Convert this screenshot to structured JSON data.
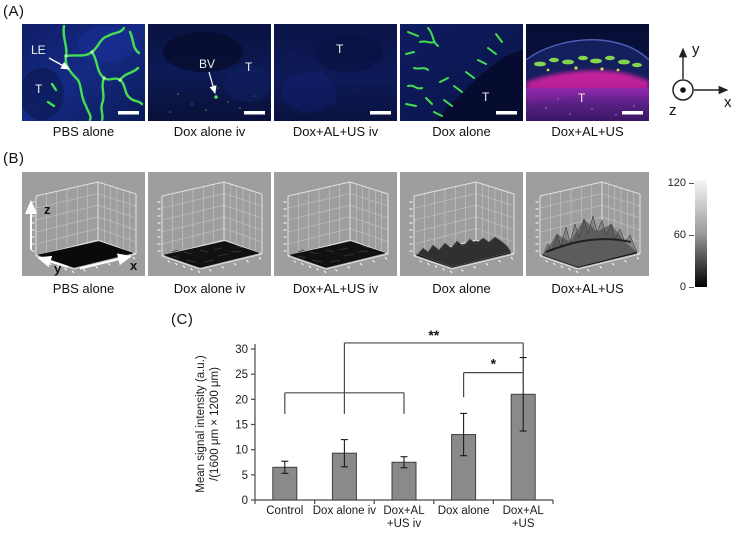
{
  "figure": {
    "panel_a_label": "(A)",
    "panel_b_label": "(B)",
    "panel_c_label": "(C)"
  },
  "panel_a": {
    "images": [
      {
        "caption": "PBS alone",
        "annotations": {
          "le": "LE",
          "t": "T"
        }
      },
      {
        "caption": "Dox alone iv",
        "annotations": {
          "bv": "BV",
          "t": "T"
        }
      },
      {
        "caption": "Dox+AL+US iv",
        "annotations": {
          "t": "T"
        }
      },
      {
        "caption": "Dox alone",
        "annotations": {
          "t": "T"
        }
      },
      {
        "caption": "Dox+AL+US",
        "annotations": {
          "t": "T"
        }
      }
    ],
    "axis_icon": {
      "x_label": "x",
      "y_label": "y",
      "z_label": "z"
    }
  },
  "panel_b": {
    "plots": [
      {
        "caption": "PBS alone",
        "surface": "flat"
      },
      {
        "caption": "Dox alone iv",
        "surface": "granular"
      },
      {
        "caption": "Dox+AL+US iv",
        "surface": "granular"
      },
      {
        "caption": "Dox alone",
        "surface": "bumpy"
      },
      {
        "caption": "Dox+AL+US",
        "surface": "peaks"
      }
    ],
    "axis_labels": {
      "x": "x",
      "y": "y",
      "z": "z"
    },
    "colorbar": {
      "tick_labels": [
        "120",
        "60",
        "0"
      ],
      "max": 120,
      "min": 0,
      "top_color": "#f7f7f7",
      "bottom_color": "#000000"
    }
  },
  "chart_data": {
    "type": "bar",
    "title": "",
    "ylabel_lines": [
      "Mean signal intensity (a.u.)",
      "/(1600 μm × 1200 μm)"
    ],
    "categories": [
      [
        "Control"
      ],
      [
        "Dox alone iv"
      ],
      [
        "Dox+AL",
        "+US iv"
      ],
      [
        "Dox alone"
      ],
      [
        "Dox+AL",
        "+US"
      ]
    ],
    "values": [
      6.5,
      9.3,
      7.5,
      13,
      21
    ],
    "errors": [
      1.2,
      2.7,
      1.1,
      4.2,
      7.3
    ],
    "ylim": [
      0,
      30
    ],
    "yticks": [
      0,
      5,
      10,
      15,
      20,
      25,
      30
    ],
    "grid": false,
    "legend": null,
    "bar_color": "#8a8a8a",
    "bar_edge_color": "#3f3f3f",
    "line_color": "#4a4a4a",
    "significance": [
      {
        "label": "**",
        "type": "nested-bracket",
        "group_bars": [
          0,
          1,
          2
        ],
        "group_y": 21.3,
        "group_drop": 4.2,
        "top_from_bar": 1,
        "top_to_bar": 4,
        "top_y": 31.2,
        "top_right_drop": 2.8
      },
      {
        "label": "*",
        "type": "bracket",
        "from_bar": 3,
        "to_bar": 4,
        "y": 25.3,
        "left_drop": 4.9,
        "right_drop": 2.1
      }
    ]
  }
}
